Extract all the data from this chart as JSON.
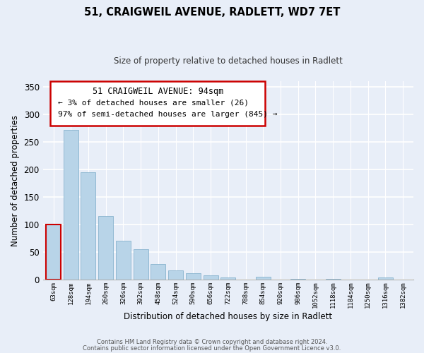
{
  "title": "51, CRAIGWEIL AVENUE, RADLETT, WD7 7ET",
  "subtitle": "Size of property relative to detached houses in Radlett",
  "xlabel": "Distribution of detached houses by size in Radlett",
  "ylabel": "Number of detached properties",
  "categories": [
    "63sqm",
    "128sqm",
    "194sqm",
    "260sqm",
    "326sqm",
    "392sqm",
    "458sqm",
    "524sqm",
    "590sqm",
    "656sqm",
    "722sqm",
    "788sqm",
    "854sqm",
    "920sqm",
    "986sqm",
    "1052sqm",
    "1118sqm",
    "1184sqm",
    "1250sqm",
    "1316sqm",
    "1382sqm"
  ],
  "values": [
    100,
    271,
    195,
    115,
    70,
    55,
    28,
    17,
    11,
    8,
    4,
    0,
    5,
    0,
    1,
    0,
    1,
    0,
    0,
    4,
    0
  ],
  "highlight_index": 0,
  "highlight_color": "#cc0000",
  "bar_color": "#b8d4e8",
  "bar_edge_color": "#7aaac8",
  "ylim": [
    0,
    360
  ],
  "yticks": [
    0,
    50,
    100,
    150,
    200,
    250,
    300,
    350
  ],
  "annotation_title": "51 CRAIGWEIL AVENUE: 94sqm",
  "annotation_line1": "← 3% of detached houses are smaller (26)",
  "annotation_line2": "97% of semi-detached houses are larger (845) →",
  "footer_line1": "Contains HM Land Registry data © Crown copyright and database right 2024.",
  "footer_line2": "Contains public sector information licensed under the Open Government Licence v3.0.",
  "background_color": "#e8eef8"
}
